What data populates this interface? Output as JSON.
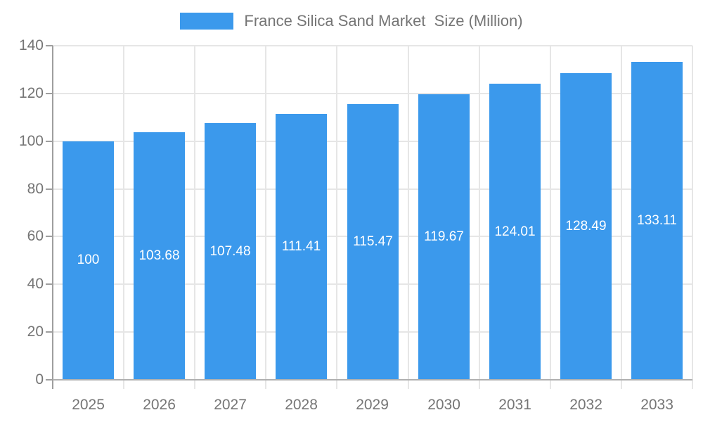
{
  "legend": {
    "label": "France Silica Sand Market  Size (Million)"
  },
  "chart_data": {
    "type": "bar",
    "title": "France Silica Sand Market  Size (Million)",
    "categories": [
      "2025",
      "2026",
      "2027",
      "2028",
      "2029",
      "2030",
      "2031",
      "2032",
      "2033"
    ],
    "values": [
      100,
      103.68,
      107.48,
      111.41,
      115.47,
      119.67,
      124.01,
      128.49,
      133.11
    ],
    "value_labels": [
      "100",
      "103.68",
      "107.48",
      "111.41",
      "115.47",
      "119.67",
      "124.01",
      "128.49",
      "133.11"
    ],
    "xlabel": "",
    "ylabel": "",
    "ylim": [
      0,
      140
    ],
    "y_ticks": [
      0,
      20,
      40,
      60,
      80,
      100,
      120,
      140
    ],
    "grid": true,
    "legend_position": "top",
    "colors": {
      "bar": "#3b99ec",
      "bar_value_label": "#ffffff",
      "axis_text": "#757575",
      "gridline": "#e6e6e6",
      "y_axis_line": "#9e9e9e",
      "x_axis_line": "#b0b0b0",
      "background": "#ffffff"
    }
  }
}
